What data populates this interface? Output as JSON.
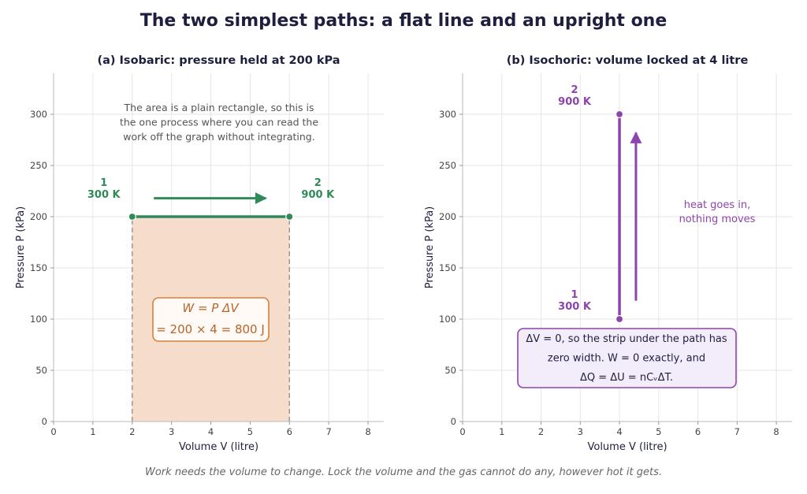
{
  "title": "The two simplest paths: a flat line and an upright one",
  "footer": "Work needs the volume to change. Lock the volume and the gas cannot do any, however hot it gets.",
  "colors": {
    "isobaric": "#2e8b57",
    "isochoric": "#8e44ad",
    "area_fill": "#f5dccb",
    "area_edge": "#999999",
    "box_edge_a": "#d9813a",
    "box_text_a": "#b5652a",
    "box_fill_b": "#f3ecfb",
    "grid": "#e6e6e6",
    "axis_text": "#444444",
    "note_text": "#555555"
  },
  "chart_data": [
    {
      "type": "line",
      "title": "(a) Isobaric: pressure held at 200 kPa",
      "xlabel": "Volume V (litre)",
      "ylabel": "Pressure P (kPa)",
      "xlim": [
        0,
        8.4
      ],
      "ylim": [
        0,
        340
      ],
      "xticks": [
        0,
        1,
        2,
        3,
        4,
        5,
        6,
        7,
        8
      ],
      "yticks": [
        0,
        50,
        100,
        150,
        200,
        250,
        300
      ],
      "grid": true,
      "series": [
        {
          "x": [
            2,
            6
          ],
          "y": [
            200,
            200
          ]
        }
      ],
      "states": [
        {
          "label": "1",
          "temp": "300 K",
          "x": 2,
          "y": 200
        },
        {
          "label": "2",
          "temp": "900 K",
          "x": 6,
          "y": 200
        }
      ],
      "shaded_area": {
        "x": [
          2,
          6
        ],
        "y": [
          0,
          200
        ]
      },
      "direction_arrow": {
        "from": [
          2.55,
          218
        ],
        "to": [
          5.4,
          218
        ]
      },
      "annotation": [
        "The area is a plain rectangle, so this is",
        "the one process where you can read the",
        "work off the graph without integrating."
      ],
      "formula_box": [
        "W = P ΔV",
        "= 200 × 4 = 800 J"
      ]
    },
    {
      "type": "line",
      "title": "(b) Isochoric: volume locked at 4 litre",
      "xlabel": "Volume V (litre)",
      "ylabel": "Pressure P (kPa)",
      "xlim": [
        0,
        8.4
      ],
      "ylim": [
        0,
        340
      ],
      "xticks": [
        0,
        1,
        2,
        3,
        4,
        5,
        6,
        7,
        8
      ],
      "yticks": [
        0,
        50,
        100,
        150,
        200,
        250,
        300
      ],
      "grid": true,
      "series": [
        {
          "x": [
            4,
            4
          ],
          "y": [
            100,
            300
          ]
        }
      ],
      "states": [
        {
          "label": "1",
          "temp": "300 K",
          "x": 4,
          "y": 100
        },
        {
          "label": "2",
          "temp": "900 K",
          "x": 4,
          "y": 300
        }
      ],
      "direction_arrow": {
        "from": [
          4.42,
          118
        ],
        "to": [
          4.42,
          282
        ]
      },
      "annotation": [
        "heat goes in,",
        "nothing moves"
      ],
      "formula_box": [
        "ΔV = 0, so the strip under the path has",
        "zero width. W = 0 exactly, and",
        "ΔQ = ΔU = nCᵥΔT."
      ]
    }
  ]
}
